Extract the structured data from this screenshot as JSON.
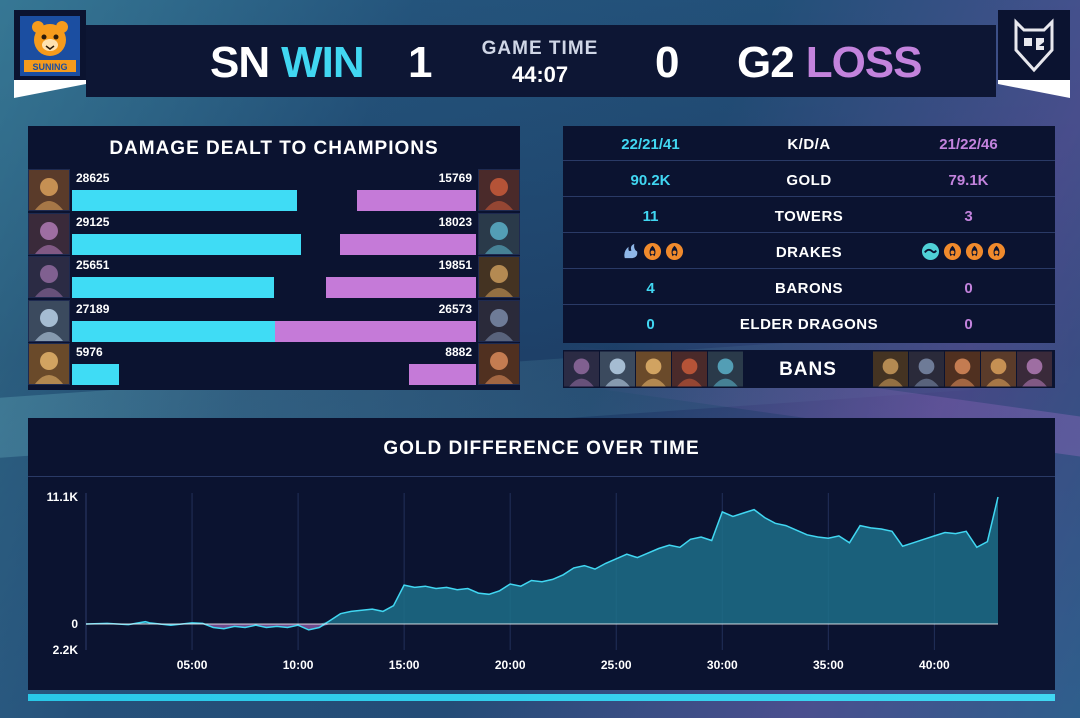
{
  "header": {
    "left_team": {
      "name": "SN",
      "result": "WIN",
      "score": "1",
      "logo_text": "SUNING"
    },
    "right_team": {
      "name": "G2",
      "result": "LOSS",
      "score": "0"
    },
    "game_time_label": "GAME TIME",
    "game_time": "44:07",
    "colors": {
      "blue_team": "#41d7f2",
      "red_team": "#c383dd"
    }
  },
  "damage": {
    "title": "DAMAGE DEALT TO CHAMPIONS",
    "max_value": 29125,
    "rows": [
      {
        "left": 28625,
        "right": 15769
      },
      {
        "left": 29125,
        "right": 18023
      },
      {
        "left": 25651,
        "right": 19851
      },
      {
        "left": 27189,
        "right": 26573
      },
      {
        "left": 5976,
        "right": 8882
      }
    ]
  },
  "stats": {
    "rows": [
      {
        "label": "K/D/A",
        "left": "22/21/41",
        "right": "21/22/46"
      },
      {
        "label": "GOLD",
        "left": "90.2K",
        "right": "79.1K"
      },
      {
        "label": "TOWERS",
        "left": "11",
        "right": "3"
      },
      {
        "label": "DRAKES",
        "left": "",
        "right": ""
      },
      {
        "label": "BARONS",
        "left": "4",
        "right": "0"
      },
      {
        "label": "ELDER DRAGONS",
        "left": "0",
        "right": "0"
      }
    ],
    "drakes_left": [
      "cloud-drake-icon",
      "infernal-drake-icon",
      "infernal-drake-icon"
    ],
    "drakes_right": [
      "ocean-drake-icon",
      "infernal-drake-icon",
      "infernal-drake-icon",
      "infernal-drake-icon"
    ]
  },
  "bans": {
    "label": "BANS"
  },
  "chart_data": {
    "type": "area",
    "title": "GOLD DIFFERENCE OVER TIME",
    "y_tick_labels": [
      "11.1K",
      "0",
      "2.2K"
    ],
    "ylim": [
      -2200,
      11100
    ],
    "x_tick_labels": [
      "05:00",
      "10:00",
      "15:00",
      "20:00",
      "25:00",
      "30:00",
      "35:00",
      "40:00"
    ],
    "x_ticks": [
      5,
      10,
      15,
      20,
      25,
      30,
      35,
      40
    ],
    "xlim": [
      0,
      43
    ],
    "x": [
      0,
      1,
      2,
      2.8,
      3,
      4,
      5,
      5.5,
      6,
      6.5,
      7,
      7.5,
      8,
      8.5,
      9,
      9.5,
      10,
      10.5,
      11,
      11.5,
      12,
      12.5,
      13,
      13.5,
      14,
      14.5,
      15,
      15.5,
      16,
      16.5,
      17,
      17.5,
      18,
      18.5,
      19,
      19.5,
      20,
      20.5,
      21,
      21.5,
      22,
      22.5,
      23,
      23.5,
      24,
      24.5,
      25,
      25.5,
      26,
      26.5,
      27,
      27.5,
      28,
      28.5,
      29,
      29.5,
      30,
      30.5,
      31,
      31.5,
      32,
      32.5,
      33,
      33.5,
      34,
      34.5,
      35,
      35.5,
      36,
      36.5,
      37,
      37.5,
      38,
      38.5,
      39,
      39.5,
      40,
      40.5,
      41,
      41.5,
      42,
      42.5,
      43
    ],
    "values": [
      0,
      50,
      -50,
      200,
      100,
      -100,
      100,
      50,
      -300,
      -400,
      -200,
      -300,
      -100,
      -300,
      -200,
      -300,
      -100,
      -500,
      -300,
      300,
      900,
      1100,
      1200,
      1300,
      1100,
      1600,
      3400,
      3200,
      3300,
      3100,
      3200,
      3000,
      3100,
      2700,
      2600,
      2900,
      3500,
      3300,
      3800,
      3700,
      3900,
      4300,
      4900,
      5100,
      4800,
      5300,
      5700,
      6100,
      5800,
      6200,
      6600,
      6900,
      6700,
      7400,
      7600,
      7300,
      9800,
      9400,
      9700,
      10000,
      9300,
      8800,
      8600,
      8200,
      7800,
      7600,
      7500,
      7700,
      7100,
      8600,
      8400,
      8300,
      8100,
      6800,
      7100,
      7400,
      7700,
      8000,
      7900,
      8100,
      6700,
      7200,
      11100
    ],
    "grid": true,
    "series_color": "#41d7f2",
    "negative_color": "#c57ad8"
  }
}
